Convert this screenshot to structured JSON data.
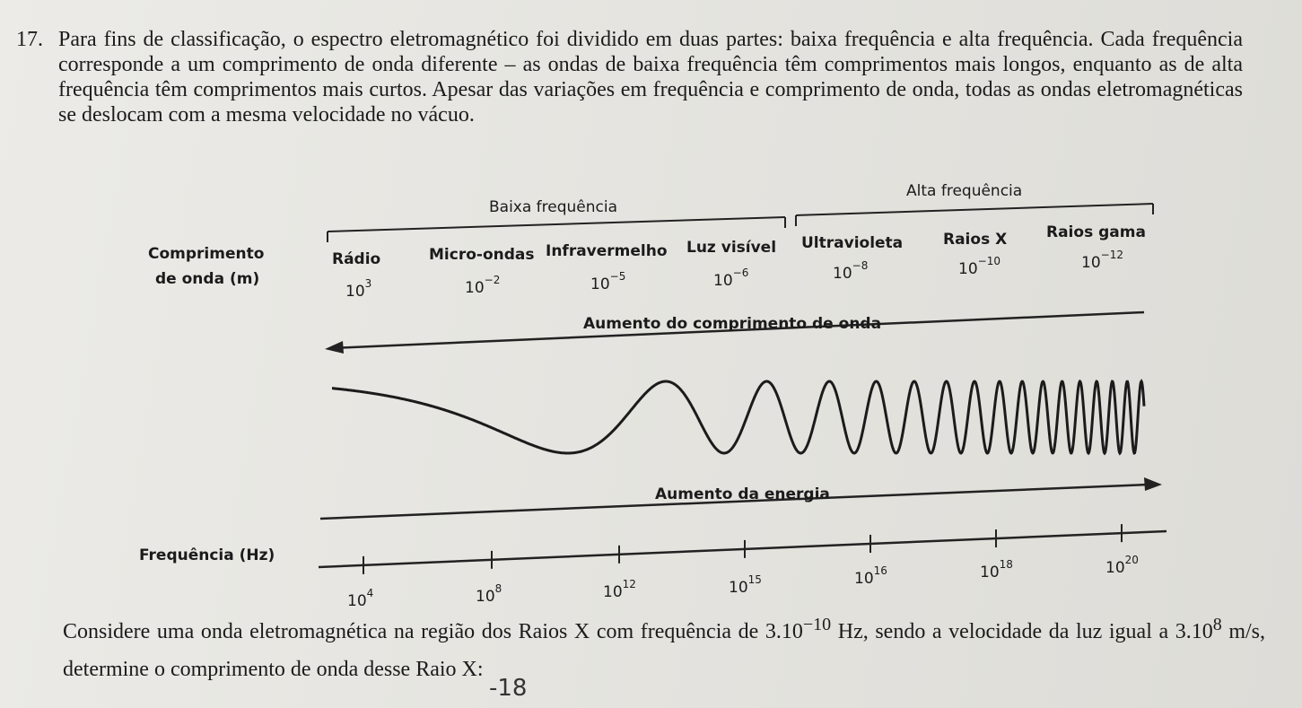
{
  "question": {
    "number": "17.",
    "text": "Para fins de classificação, o espectro eletromagnético foi dividido em duas partes: baixa frequência e alta frequência. Cada frequência corresponde a um comprimento de onda diferente – as ondas de baixa frequência têm comprimentos mais longos, enquanto as de alta frequência têm comprimentos mais curtos. Apesar das variações em frequência e comprimento de onda, todas as ondas eletromagnéticas se deslocam com a mesma velocidade no vácuo."
  },
  "diagram": {
    "low_label": "Baixa frequência",
    "high_label": "Alta frequência",
    "wavelength_label": [
      "Comprimento",
      "de onda (m)"
    ],
    "bands": [
      "Rádio",
      "Micro-ondas",
      "Infravermelho",
      "Luz visível",
      "Ultravioleta",
      "Raios X",
      "Raios gama"
    ],
    "wavelengths": [
      {
        "base": "10",
        "exp": "3"
      },
      {
        "base": "10",
        "exp": "−2"
      },
      {
        "base": "10",
        "exp": "−5"
      },
      {
        "base": "10",
        "exp": "−6"
      },
      {
        "base": "10",
        "exp": "−8"
      },
      {
        "base": "10",
        "exp": "−10"
      },
      {
        "base": "10",
        "exp": "−12"
      }
    ],
    "wavelength_arrow": "Aumento do comprimento de onda",
    "energy_arrow": "Aumento da energia",
    "frequency_label": "Frequência (Hz)",
    "frequencies": [
      {
        "base": "10",
        "exp": "4"
      },
      {
        "base": "10",
        "exp": "8"
      },
      {
        "base": "10",
        "exp": "12"
      },
      {
        "base": "10",
        "exp": "15"
      },
      {
        "base": "10",
        "exp": "16"
      },
      {
        "base": "10",
        "exp": "18"
      },
      {
        "base": "10",
        "exp": "20"
      }
    ]
  },
  "closing": {
    "text1": "Considere uma onda eletromagnética na região dos Raios X com frequência de ",
    "value1": "3.10",
    "exp1": "−10",
    "text2": " Hz, sendo a velocidade da luz igual a ",
    "value2": "3.10",
    "exp2": "8",
    "text3": " m/s, determine o comprimento de onda desse Raio X:"
  },
  "handwritten_note": "-18"
}
